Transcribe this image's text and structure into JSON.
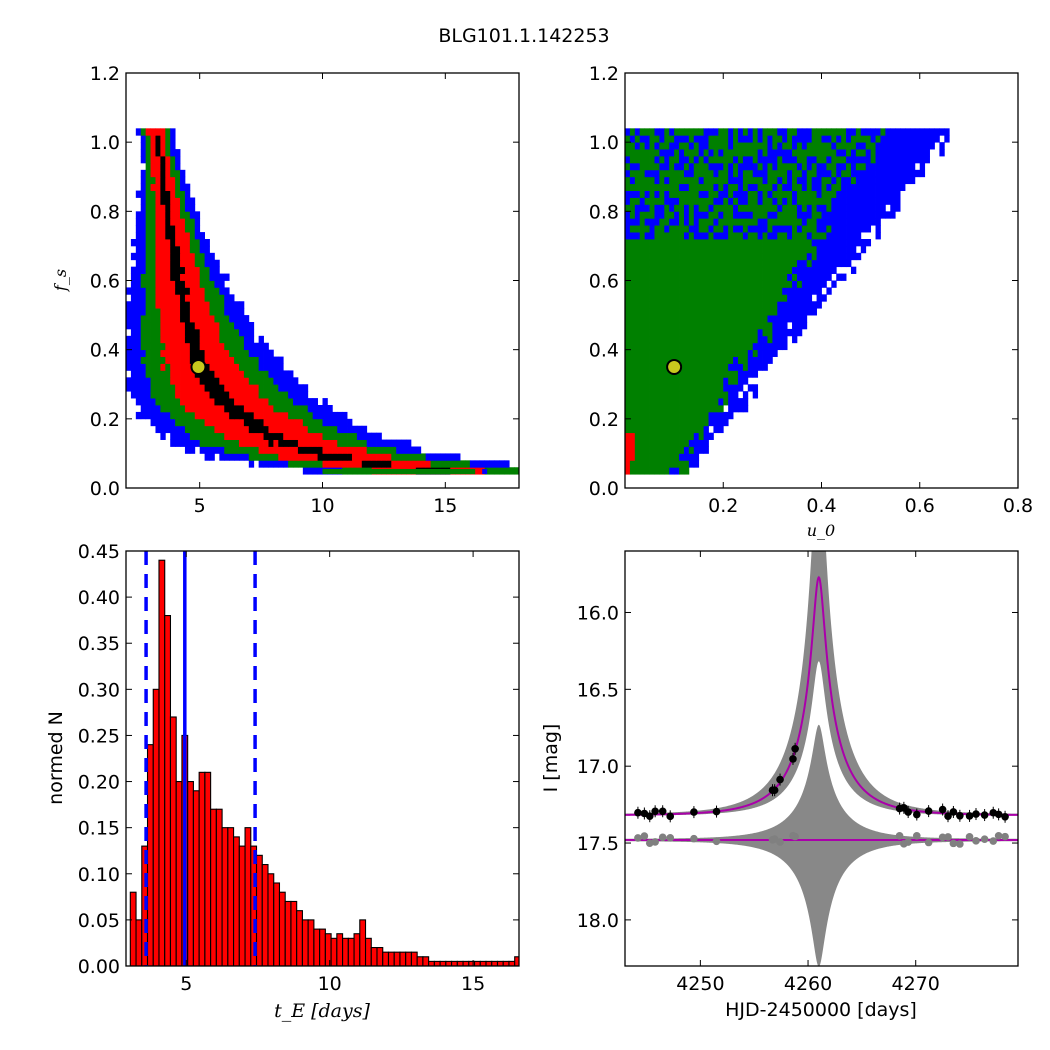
{
  "suptitle": "BLG101.1.142253",
  "chart_data": [
    {
      "id": "fs-vs-tE",
      "type": "heatmap",
      "title": "",
      "xlabel": "",
      "ylabel": "f_s",
      "xlim": [
        2,
        18
      ],
      "ylim": [
        0.0,
        1.2
      ],
      "xticks": [
        "5",
        "10",
        "15"
      ],
      "yticks": [
        "0.0",
        "0.2",
        "0.4",
        "0.6",
        "0.8",
        "1.0",
        "1.2"
      ],
      "levels": [
        "black",
        "red",
        "green",
        "blue"
      ],
      "colors": {
        "level1": "#000000",
        "level2": "#ff0000",
        "level3": "#008000",
        "level4": "#0000ff"
      },
      "ridge": [
        [
          3.2,
          1.03
        ],
        [
          3.4,
          0.95
        ],
        [
          3.6,
          0.85
        ],
        [
          3.8,
          0.75
        ],
        [
          4.0,
          0.65
        ],
        [
          4.3,
          0.55
        ],
        [
          4.6,
          0.45
        ],
        [
          5.0,
          0.36
        ],
        [
          5.5,
          0.3
        ],
        [
          6.0,
          0.25
        ],
        [
          6.7,
          0.21
        ],
        [
          7.5,
          0.17
        ],
        [
          8.5,
          0.13
        ],
        [
          9.5,
          0.11
        ],
        [
          10.5,
          0.09
        ],
        [
          11.5,
          0.08
        ],
        [
          13.0,
          0.06
        ],
        [
          14.5,
          0.05
        ],
        [
          16.0,
          0.05
        ]
      ],
      "best_fit": {
        "x": 4.95,
        "y": 0.35,
        "color": "#c8c81e"
      }
    },
    {
      "id": "fs-vs-u0",
      "type": "heatmap",
      "title": "",
      "xlabel": "u_0",
      "ylabel": "",
      "xlim": [
        0.0,
        0.8
      ],
      "ylim": [
        0.0,
        1.2
      ],
      "xticks": [
        "0.2",
        "0.4",
        "0.6",
        "0.8"
      ],
      "yticks": [
        "0.0",
        "0.2",
        "0.4",
        "0.6",
        "0.8",
        "1.0",
        "1.2"
      ],
      "levels": [
        "black",
        "red",
        "green",
        "blue"
      ],
      "colors": {
        "level1": "#000000",
        "level2": "#ff0000",
        "level3": "#008000",
        "level4": "#0000ff"
      },
      "best_fit": {
        "x": 0.1,
        "y": 0.35,
        "color": "#c8c81e"
      }
    },
    {
      "id": "tE-histogram",
      "type": "bar",
      "title": "",
      "xlabel": "t_E [days]",
      "ylabel": "normed N",
      "xlim": [
        2.9,
        16.6
      ],
      "ylim": [
        0.0,
        0.45
      ],
      "xticks": [
        "5",
        "10",
        "15"
      ],
      "yticks": [
        "0.00",
        "0.05",
        "0.10",
        "0.15",
        "0.20",
        "0.25",
        "0.30",
        "0.35",
        "0.40",
        "0.45"
      ],
      "bin_start": 3.05,
      "bin_width": 0.2,
      "values": [
        0.08,
        0.05,
        0.13,
        0.24,
        0.3,
        0.44,
        0.38,
        0.27,
        0.2,
        0.25,
        0.2,
        0.19,
        0.21,
        0.21,
        0.17,
        0.17,
        0.15,
        0.15,
        0.14,
        0.13,
        0.15,
        0.13,
        0.12,
        0.11,
        0.1,
        0.09,
        0.08,
        0.07,
        0.07,
        0.06,
        0.05,
        0.05,
        0.04,
        0.04,
        0.035,
        0.03,
        0.035,
        0.03,
        0.03,
        0.035,
        0.05,
        0.03,
        0.02,
        0.02,
        0.015,
        0.015,
        0.015,
        0.015,
        0.015,
        0.015,
        0.01,
        0.01,
        0.005,
        0.005,
        0.005,
        0.005,
        0.005,
        0.005,
        0.005,
        0.005,
        0.005,
        0.005,
        0.005,
        0.005,
        0.005,
        0.005,
        0.005,
        0.01,
        0.005
      ],
      "bar_color": "#ff0000",
      "median": 4.95,
      "interval": [
        3.6,
        7.4
      ],
      "line_color": "#0000ff"
    },
    {
      "id": "light-curve",
      "type": "scatter",
      "title": "",
      "xlabel": "HJD-2450000 [days]",
      "ylabel": "I [mag]",
      "xlim": [
        4243,
        4279.5
      ],
      "ylim": [
        18.3,
        15.6
      ],
      "xticks": [
        "4250",
        "4260",
        "4270"
      ],
      "yticks": [
        "16.0",
        "16.5",
        "17.0",
        "17.5",
        "18.0"
      ],
      "model": {
        "t0": 4261.0,
        "tE": 4.95,
        "u0": 0.1,
        "fs": 0.35,
        "baseline": 17.32,
        "color": "#aa00aa"
      },
      "residual_baseline": 17.48,
      "band_color": "#888888",
      "data_times": [
        4244.2,
        4244.8,
        4245.3,
        4245.8,
        4246.5,
        4247.2,
        4249.4,
        4251.5,
        4256.7,
        4256.9,
        4257.4,
        4258.6,
        4258.8,
        4268.5,
        4268.9,
        4269.3,
        4270.1,
        4271.2,
        4272.5,
        4273.0,
        4273.5,
        4274.1,
        4275.0,
        4275.6,
        4276.4,
        4277.2,
        4277.7,
        4278.3
      ]
    }
  ]
}
